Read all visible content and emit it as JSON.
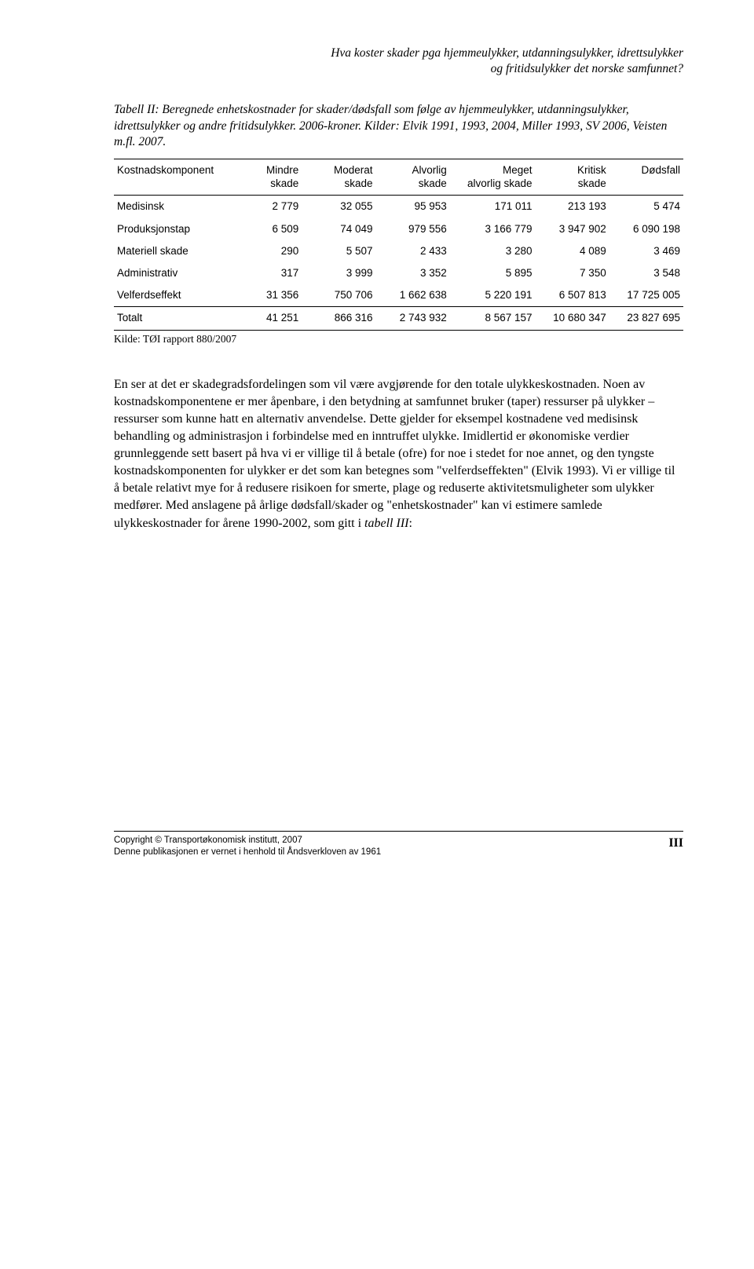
{
  "header": {
    "line1": "Hva koster skader pga hjemmeulykker, utdanningsulykker, idrettsulykker",
    "line2": "og fritidsulykker det norske samfunnet?"
  },
  "table_caption": "Tabell II: Beregnede enhetskostnader for skader/dødsfall som følge av hjemmeulykker, utdanningsulykker, idrettsulykker og andre fritidsulykker. 2006-kroner. Kilder: Elvik 1991, 1993, 2004, Miller 1993, SV 2006, Veisten m.fl. 2007.",
  "table": {
    "columns": [
      "Kostnadskomponent",
      "Mindre skade",
      "Moderat skade",
      "Alvorlig skade",
      "Meget alvorlig skade",
      "Kritisk skade",
      "Dødsfall"
    ],
    "rows": [
      [
        "Medisinsk",
        "2 779",
        "32 055",
        "95 953",
        "171 011",
        "213 193",
        "5 474"
      ],
      [
        "Produksjonstap",
        "6 509",
        "74 049",
        "979 556",
        "3 166 779",
        "3 947 902",
        "6 090 198"
      ],
      [
        "Materiell skade",
        "290",
        "5 507",
        "2 433",
        "3 280",
        "4 089",
        "3 469"
      ],
      [
        "Administrativ",
        "317",
        "3 999",
        "3 352",
        "5 895",
        "7 350",
        "3 548"
      ],
      [
        "Velferdseffekt",
        "31 356",
        "750 706",
        "1 662 638",
        "5 220 191",
        "6 507 813",
        "17 725 005"
      ]
    ],
    "total_row": [
      "Totalt",
      "41 251",
      "866 316",
      "2 743 932",
      "8 567 157",
      "10 680 347",
      "23 827 695"
    ],
    "col_widths": [
      "20%",
      "13%",
      "13%",
      "13%",
      "15%",
      "13%",
      "13%"
    ]
  },
  "source_line": "Kilde: TØI rapport 880/2007",
  "body": "En ser at det er skadegradsfordelingen som vil være avgjørende for den totale ulykkeskostnaden. Noen av kostnadskomponentene er mer åpenbare, i den betydning at samfunnet bruker (taper) ressurser på ulykker – ressurser som kunne hatt en alternativ anvendelse. Dette gjelder for eksempel kostnadene ved medisinsk behandling og administrasjon i forbindelse med en inntruffet ulykke. Imidlertid er økonomiske verdier grunnleggende sett basert på hva vi er villige til å betale (ofre) for noe i stedet for noe annet, og den tyngste kostnadskomponenten for ulykker er det som kan betegnes som \"velferdseffekten\" (Elvik 1993). Vi er villige til å betale relativt mye for å redusere risikoen for smerte, plage og reduserte aktivitetsmuligheter som ulykker medfører. Med anslagene på årlige dødsfall/skader og \"enhetskostnader\" kan vi estimere samlede ulykkeskostnader for årene 1990-2002, som gitt i ",
  "body_ref": "tabell III",
  "body_tail": ":",
  "footer": {
    "line1": "Copyright © Transportøkonomisk institutt, 2007",
    "line2": "Denne publikasjonen er vernet i henhold til Åndsverkloven av 1961",
    "page": "III"
  },
  "colors": {
    "text": "#000000",
    "background": "#ffffff",
    "rule": "#000000"
  }
}
